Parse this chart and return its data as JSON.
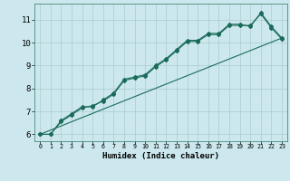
{
  "xlabel": "Humidex (Indice chaleur)",
  "ylabel": "",
  "background_color": "#cce8ee",
  "grid_color": "#aacccc",
  "line_color": "#1a6b5a",
  "xlim": [
    -0.5,
    23.5
  ],
  "ylim": [
    5.7,
    11.7
  ],
  "xticks": [
    0,
    1,
    2,
    3,
    4,
    5,
    6,
    7,
    8,
    9,
    10,
    11,
    12,
    13,
    14,
    15,
    16,
    17,
    18,
    19,
    20,
    21,
    22,
    23
  ],
  "yticks": [
    6,
    7,
    8,
    9,
    10,
    11
  ],
  "line1_x": [
    0,
    1,
    2,
    3,
    4,
    5,
    6,
    7,
    8,
    9,
    10,
    11,
    12,
    13,
    14,
    15,
    16,
    17,
    18,
    19,
    20,
    21,
    22,
    23
  ],
  "line1_y": [
    6.0,
    6.0,
    6.6,
    6.9,
    7.2,
    7.2,
    7.5,
    7.8,
    8.4,
    8.5,
    8.6,
    9.0,
    9.3,
    9.7,
    10.1,
    10.1,
    10.4,
    10.4,
    10.8,
    10.8,
    10.7,
    11.3,
    10.7,
    10.2
  ],
  "line2_x": [
    0,
    1,
    2,
    3,
    4,
    5,
    6,
    7,
    8,
    9,
    10,
    11,
    12,
    13,
    14,
    15,
    16,
    17,
    18,
    19,
    20,
    21,
    22,
    23
  ],
  "line2_y": [
    6.0,
    6.0,
    6.55,
    6.85,
    7.15,
    7.25,
    7.45,
    7.75,
    8.35,
    8.45,
    8.55,
    8.95,
    9.25,
    9.65,
    10.05,
    10.05,
    10.35,
    10.35,
    10.75,
    10.75,
    10.75,
    11.25,
    10.65,
    10.15
  ],
  "line3_x": [
    0,
    23
  ],
  "line3_y": [
    6.0,
    10.2
  ]
}
